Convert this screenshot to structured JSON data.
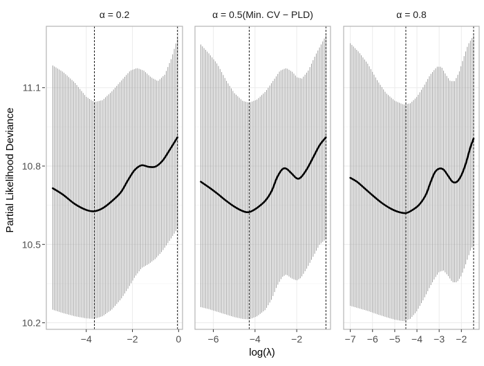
{
  "chart_data": {
    "type": "line",
    "ylabel": "Partial Likelihood Deviance",
    "xlabel": "log(λ)",
    "ylim": [
      10.175,
      11.335
    ],
    "yticks": [
      10.2,
      10.5,
      10.8,
      11.1
    ],
    "ytick_labels": [
      "10.2",
      "10.5",
      "10.8",
      "11.1"
    ],
    "colors": {
      "curve": "#000000",
      "errorbar": "#9e9e9e",
      "vline": "#000000",
      "panel_border": "#b3b3b3",
      "grid": "#ebebeb",
      "axis_text": "#4d4d4d"
    },
    "panels": [
      {
        "title_prefix": "α = 0.2",
        "title_suffix": "",
        "xlim": [
          -5.73,
          0.17
        ],
        "xticks": [
          -4,
          -2,
          0
        ],
        "xtick_labels": [
          "−4",
          "−2",
          "0"
        ],
        "vlines": [
          -3.65,
          -0.05
        ],
        "n_bars": 79,
        "x_range": [
          -5.45,
          -0.05
        ],
        "curve": [
          [
            -5.45,
            10.715
          ],
          [
            -5.0,
            10.69
          ],
          [
            -4.5,
            10.655
          ],
          [
            -4.0,
            10.632
          ],
          [
            -3.65,
            10.627
          ],
          [
            -3.3,
            10.638
          ],
          [
            -2.9,
            10.665
          ],
          [
            -2.5,
            10.7
          ],
          [
            -2.2,
            10.745
          ],
          [
            -1.9,
            10.785
          ],
          [
            -1.6,
            10.803
          ],
          [
            -1.3,
            10.797
          ],
          [
            -1.0,
            10.798
          ],
          [
            -0.7,
            10.82
          ],
          [
            -0.4,
            10.86
          ],
          [
            -0.05,
            10.91
          ]
        ],
        "upper": [
          [
            -5.45,
            11.185
          ],
          [
            -5.0,
            11.16
          ],
          [
            -4.5,
            11.12
          ],
          [
            -4.0,
            11.065
          ],
          [
            -3.65,
            11.045
          ],
          [
            -3.3,
            11.052
          ],
          [
            -2.9,
            11.085
          ],
          [
            -2.5,
            11.125
          ],
          [
            -2.1,
            11.165
          ],
          [
            -1.8,
            11.175
          ],
          [
            -1.5,
            11.165
          ],
          [
            -1.2,
            11.14
          ],
          [
            -0.9,
            11.125
          ],
          [
            -0.6,
            11.15
          ],
          [
            -0.3,
            11.215
          ],
          [
            -0.05,
            11.29
          ]
        ],
        "lower": [
          [
            -5.45,
            10.25
          ],
          [
            -5.0,
            10.237
          ],
          [
            -4.5,
            10.225
          ],
          [
            -4.0,
            10.217
          ],
          [
            -3.65,
            10.215
          ],
          [
            -3.3,
            10.225
          ],
          [
            -2.9,
            10.25
          ],
          [
            -2.5,
            10.29
          ],
          [
            -2.2,
            10.33
          ],
          [
            -1.9,
            10.375
          ],
          [
            -1.6,
            10.41
          ],
          [
            -1.3,
            10.425
          ],
          [
            -1.0,
            10.445
          ],
          [
            -0.7,
            10.475
          ],
          [
            -0.35,
            10.52
          ],
          [
            -0.05,
            10.56
          ]
        ]
      },
      {
        "title_prefix": "α = 0.5",
        "title_suffix": "(Min. CV − PLD)",
        "xlim": [
          -6.88,
          -0.38
        ],
        "xticks": [
          -6,
          -4,
          -2
        ],
        "xtick_labels": [
          "−6",
          "−4",
          "−2"
        ],
        "vlines": [
          -4.28,
          -0.6
        ],
        "n_bars": 79,
        "x_range": [
          -6.6,
          -0.6
        ],
        "curve": [
          [
            -6.6,
            10.74
          ],
          [
            -6.2,
            10.718
          ],
          [
            -5.8,
            10.694
          ],
          [
            -5.4,
            10.668
          ],
          [
            -5.0,
            10.645
          ],
          [
            -4.6,
            10.628
          ],
          [
            -4.28,
            10.624
          ],
          [
            -3.9,
            10.64
          ],
          [
            -3.5,
            10.668
          ],
          [
            -3.2,
            10.705
          ],
          [
            -2.95,
            10.755
          ],
          [
            -2.7,
            10.787
          ],
          [
            -2.5,
            10.79
          ],
          [
            -2.25,
            10.772
          ],
          [
            -2.0,
            10.753
          ],
          [
            -1.8,
            10.757
          ],
          [
            -1.5,
            10.79
          ],
          [
            -1.2,
            10.835
          ],
          [
            -0.9,
            10.88
          ],
          [
            -0.6,
            10.91
          ]
        ],
        "upper": [
          [
            -6.6,
            11.265
          ],
          [
            -6.2,
            11.23
          ],
          [
            -5.8,
            11.19
          ],
          [
            -5.4,
            11.13
          ],
          [
            -5.0,
            11.08
          ],
          [
            -4.6,
            11.05
          ],
          [
            -4.28,
            11.042
          ],
          [
            -3.9,
            11.055
          ],
          [
            -3.5,
            11.085
          ],
          [
            -3.1,
            11.13
          ],
          [
            -2.8,
            11.165
          ],
          [
            -2.5,
            11.175
          ],
          [
            -2.2,
            11.16
          ],
          [
            -2.0,
            11.14
          ],
          [
            -1.75,
            11.135
          ],
          [
            -1.45,
            11.165
          ],
          [
            -1.1,
            11.225
          ],
          [
            -0.8,
            11.27
          ],
          [
            -0.6,
            11.3
          ]
        ],
        "lower": [
          [
            -6.6,
            10.26
          ],
          [
            -6.2,
            10.252
          ],
          [
            -5.8,
            10.242
          ],
          [
            -5.4,
            10.232
          ],
          [
            -5.0,
            10.222
          ],
          [
            -4.6,
            10.215
          ],
          [
            -4.28,
            10.213
          ],
          [
            -3.9,
            10.225
          ],
          [
            -3.5,
            10.25
          ],
          [
            -3.2,
            10.29
          ],
          [
            -2.95,
            10.34
          ],
          [
            -2.7,
            10.375
          ],
          [
            -2.5,
            10.385
          ],
          [
            -2.25,
            10.37
          ],
          [
            -2.0,
            10.362
          ],
          [
            -1.8,
            10.372
          ],
          [
            -1.5,
            10.41
          ],
          [
            -1.2,
            10.455
          ],
          [
            -0.9,
            10.5
          ],
          [
            -0.6,
            10.52
          ]
        ]
      },
      {
        "title_prefix": "α = 0.8",
        "title_suffix": "",
        "xlim": [
          -7.3,
          -1.2
        ],
        "xticks": [
          -7,
          -6,
          -5,
          -4,
          -3,
          -2
        ],
        "xtick_labels": [
          "−7",
          "−6",
          "−5",
          "−4",
          "−3",
          "−2"
        ],
        "vlines": [
          -4.5,
          -1.45
        ],
        "n_bars": 79,
        "x_range": [
          -7.0,
          -1.45
        ],
        "curve": [
          [
            -7.0,
            10.755
          ],
          [
            -6.7,
            10.74
          ],
          [
            -6.4,
            10.718
          ],
          [
            -6.0,
            10.688
          ],
          [
            -5.6,
            10.66
          ],
          [
            -5.2,
            10.638
          ],
          [
            -4.85,
            10.625
          ],
          [
            -4.5,
            10.62
          ],
          [
            -4.2,
            10.632
          ],
          [
            -3.9,
            10.652
          ],
          [
            -3.6,
            10.69
          ],
          [
            -3.4,
            10.735
          ],
          [
            -3.2,
            10.775
          ],
          [
            -3.0,
            10.79
          ],
          [
            -2.8,
            10.786
          ],
          [
            -2.6,
            10.763
          ],
          [
            -2.4,
            10.74
          ],
          [
            -2.2,
            10.74
          ],
          [
            -2.0,
            10.765
          ],
          [
            -1.8,
            10.81
          ],
          [
            -1.6,
            10.87
          ],
          [
            -1.45,
            10.905
          ]
        ],
        "upper": [
          [
            -7.0,
            11.27
          ],
          [
            -6.6,
            11.235
          ],
          [
            -6.2,
            11.19
          ],
          [
            -5.8,
            11.13
          ],
          [
            -5.4,
            11.08
          ],
          [
            -5.0,
            11.05
          ],
          [
            -4.6,
            11.035
          ],
          [
            -4.3,
            11.04
          ],
          [
            -4.0,
            11.065
          ],
          [
            -3.7,
            11.105
          ],
          [
            -3.4,
            11.15
          ],
          [
            -3.1,
            11.18
          ],
          [
            -2.9,
            11.18
          ],
          [
            -2.7,
            11.15
          ],
          [
            -2.5,
            11.125
          ],
          [
            -2.3,
            11.125
          ],
          [
            -2.1,
            11.16
          ],
          [
            -1.9,
            11.215
          ],
          [
            -1.7,
            11.265
          ],
          [
            -1.45,
            11.3
          ]
        ],
        "lower": [
          [
            -7.0,
            10.265
          ],
          [
            -6.6,
            10.255
          ],
          [
            -6.2,
            10.245
          ],
          [
            -5.8,
            10.233
          ],
          [
            -5.4,
            10.222
          ],
          [
            -5.0,
            10.212
          ],
          [
            -4.6,
            10.206
          ],
          [
            -4.3,
            10.215
          ],
          [
            -4.0,
            10.245
          ],
          [
            -3.7,
            10.29
          ],
          [
            -3.4,
            10.34
          ],
          [
            -3.2,
            10.37
          ],
          [
            -3.0,
            10.395
          ],
          [
            -2.8,
            10.4
          ],
          [
            -2.6,
            10.38
          ],
          [
            -2.4,
            10.355
          ],
          [
            -2.2,
            10.355
          ],
          [
            -2.0,
            10.38
          ],
          [
            -1.8,
            10.425
          ],
          [
            -1.6,
            10.475
          ],
          [
            -1.45,
            10.5
          ]
        ]
      }
    ]
  }
}
